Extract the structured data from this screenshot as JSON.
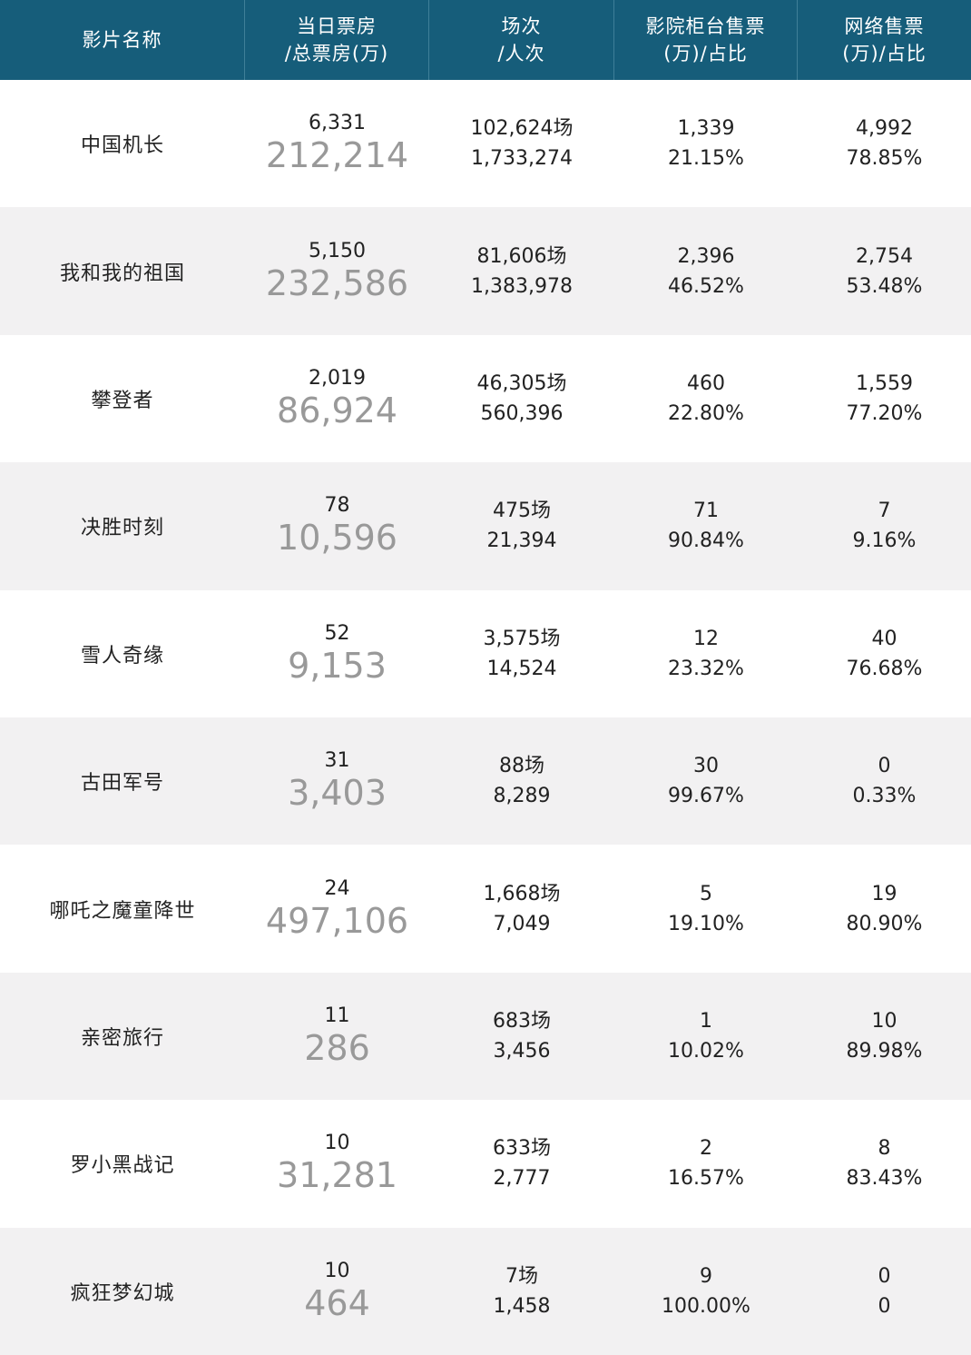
{
  "header": {
    "film_name": "影片名称",
    "box_office_line1": "当日票房",
    "box_office_line2": "/总票房(万)",
    "shows_line1": "场次",
    "shows_line2": "/人次",
    "counter_line1": "影院柜台售票",
    "counter_line2": "(万)/占比",
    "online_line1": "网络售票",
    "online_line2": "(万)/占比"
  },
  "rows": [
    {
      "name": "中国机长",
      "today": "6,331",
      "total": "212,214",
      "shows": "102,624场",
      "admissions": "1,733,274",
      "counter": "1,339",
      "counter_pct": "21.15%",
      "online": "4,992",
      "online_pct": "78.85%"
    },
    {
      "name": "我和我的祖国",
      "today": "5,150",
      "total": "232,586",
      "shows": "81,606场",
      "admissions": "1,383,978",
      "counter": "2,396",
      "counter_pct": "46.52%",
      "online": "2,754",
      "online_pct": "53.48%"
    },
    {
      "name": "攀登者",
      "today": "2,019",
      "total": "86,924",
      "shows": "46,305场",
      "admissions": "560,396",
      "counter": "460",
      "counter_pct": "22.80%",
      "online": "1,559",
      "online_pct": "77.20%"
    },
    {
      "name": "决胜时刻",
      "today": "78",
      "total": "10,596",
      "shows": "475场",
      "admissions": "21,394",
      "counter": "71",
      "counter_pct": "90.84%",
      "online": "7",
      "online_pct": "9.16%"
    },
    {
      "name": "雪人奇缘",
      "today": "52",
      "total": "9,153",
      "shows": "3,575场",
      "admissions": "14,524",
      "counter": "12",
      "counter_pct": "23.32%",
      "online": "40",
      "online_pct": "76.68%"
    },
    {
      "name": "古田军号",
      "today": "31",
      "total": "3,403",
      "shows": "88场",
      "admissions": "8,289",
      "counter": "30",
      "counter_pct": "99.67%",
      "online": "0",
      "online_pct": "0.33%"
    },
    {
      "name": "哪吒之魔童降世",
      "today": "24",
      "total": "497,106",
      "shows": "1,668场",
      "admissions": "7,049",
      "counter": "5",
      "counter_pct": "19.10%",
      "online": "19",
      "online_pct": "80.90%"
    },
    {
      "name": "亲密旅行",
      "today": "11",
      "total": "286",
      "shows": "683场",
      "admissions": "3,456",
      "counter": "1",
      "counter_pct": "10.02%",
      "online": "10",
      "online_pct": "89.98%"
    },
    {
      "name": "罗小黑战记",
      "today": "10",
      "total": "31,281",
      "shows": "633场",
      "admissions": "2,777",
      "counter": "2",
      "counter_pct": "16.57%",
      "online": "8",
      "online_pct": "83.43%"
    },
    {
      "name": "疯狂梦幻城",
      "today": "10",
      "total": "464",
      "shows": "7场",
      "admissions": "1,458",
      "counter": "9",
      "counter_pct": "100.00%",
      "online": "0",
      "online_pct": "0"
    }
  ]
}
